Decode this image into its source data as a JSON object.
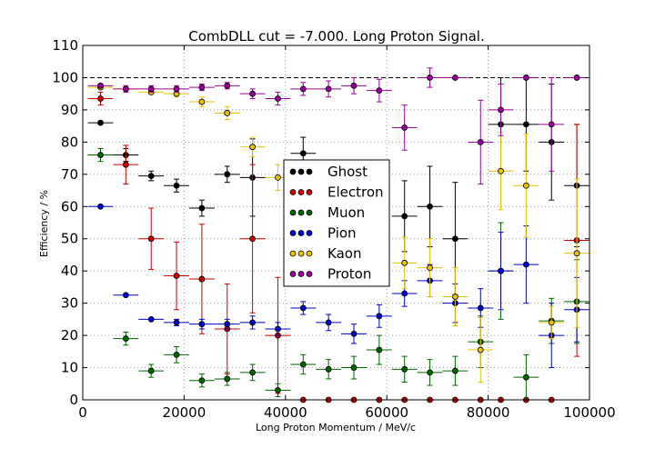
{
  "chart_data": {
    "type": "scatter",
    "title": "CombDLL cut = -7.000. Long Proton Signal.",
    "xlabel": "Long Proton Momentum / MeV/c",
    "ylabel": "Efficiency / %",
    "xlim": [
      0,
      100000
    ],
    "ylim": [
      0,
      110
    ],
    "x_ticks": [
      0,
      20000,
      40000,
      60000,
      80000,
      100000
    ],
    "y_ticks": [
      0,
      10,
      20,
      30,
      40,
      50,
      60,
      70,
      80,
      90,
      100,
      110
    ],
    "grid": true,
    "legend_position": "center",
    "reference_line": 100,
    "x": [
      3500,
      8500,
      13500,
      18500,
      23500,
      28500,
      33500,
      38500,
      43500,
      48500,
      53500,
      58500,
      63500,
      68500,
      73500,
      78500,
      82500,
      87500,
      92500,
      97500
    ],
    "series": [
      {
        "name": "Ghost",
        "color": "#000000",
        "values": [
          86,
          76,
          69.5,
          66.5,
          59.5,
          70,
          69,
          null,
          76.5,
          null,
          null,
          null,
          57,
          60,
          50,
          null,
          85.5,
          85.5,
          80,
          66.5
        ],
        "yerr": [
          0,
          2,
          1.5,
          2,
          2.5,
          2.5,
          12,
          null,
          5,
          null,
          null,
          null,
          11,
          12.5,
          17.5,
          null,
          14.5,
          14.5,
          18,
          19
        ]
      },
      {
        "name": "Electron",
        "color": "#cc0000",
        "values": [
          93.5,
          73,
          50,
          38.5,
          37.5,
          22,
          50,
          20,
          0,
          0,
          0,
          0,
          0,
          0,
          0,
          0,
          0,
          0,
          0,
          49.5
        ],
        "yerr": [
          2,
          6,
          9.5,
          10.5,
          17,
          14,
          23,
          18,
          0,
          0,
          0,
          0,
          0,
          0,
          0,
          0,
          0,
          0,
          0,
          36
        ]
      },
      {
        "name": "Muon",
        "color": "#006600",
        "values": [
          76,
          19,
          9,
          14,
          6,
          6.5,
          8.5,
          3,
          11,
          9.5,
          10,
          15.5,
          9.5,
          8.5,
          9,
          18,
          40,
          7,
          24.5,
          30.5
        ],
        "yerr": [
          2,
          2,
          2,
          2.5,
          2,
          2,
          2.5,
          2,
          3,
          3,
          3.5,
          4.5,
          4,
          4,
          4.5,
          8,
          15,
          7,
          7,
          13
        ]
      },
      {
        "name": "Pion",
        "color": "#0000cc",
        "values": [
          60,
          32.5,
          25,
          24,
          23.5,
          23.5,
          24,
          22,
          28.5,
          24,
          20.5,
          26,
          33,
          37,
          30,
          28.5,
          40,
          42,
          20,
          28
        ],
        "yerr": [
          0,
          0,
          0,
          1,
          1.5,
          1.5,
          2,
          2,
          2,
          2.5,
          3,
          3.5,
          4,
          5,
          6,
          6,
          12,
          12,
          10,
          10
        ]
      },
      {
        "name": "Kaon",
        "color": "#e6c300",
        "values": [
          97,
          96.5,
          95.5,
          95,
          92.5,
          89,
          78.5,
          69,
          null,
          null,
          null,
          null,
          42.5,
          41,
          32,
          15.5,
          71,
          66.5,
          24,
          45.5
        ],
        "yerr": [
          0,
          0.5,
          0.5,
          1,
          1.5,
          2,
          3,
          4,
          null,
          null,
          null,
          null,
          8,
          9,
          9,
          10,
          12,
          16,
          5,
          23
        ]
      },
      {
        "name": "Proton",
        "color": "#990099",
        "values": [
          97.5,
          96.5,
          96.5,
          96.5,
          97,
          97.5,
          95,
          93.5,
          96.5,
          96.5,
          97.5,
          96,
          84.5,
          100,
          100,
          80,
          90,
          100,
          85.5,
          100
        ],
        "yerr": [
          0.5,
          1,
          1,
          1,
          1,
          1,
          1.5,
          2,
          2,
          2.5,
          2.5,
          3.5,
          7,
          3,
          0,
          13,
          8,
          0,
          14.5,
          0
        ]
      }
    ]
  }
}
